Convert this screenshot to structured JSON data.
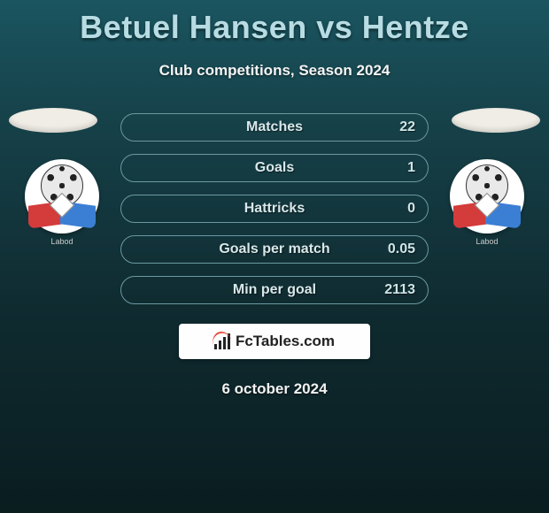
{
  "title": "Betuel Hansen vs Hentze",
  "subtitle": "Club competitions, Season 2024",
  "date": "6 october 2024",
  "footer_brand": "FcTables.com",
  "colors": {
    "title": "#b8dce3",
    "row_border": "#6a9aa0",
    "row_text": "#d8e8ea",
    "value_text": "#cde4e7",
    "badge_text": "Labod"
  },
  "stats": [
    {
      "label": "Matches",
      "value": "22"
    },
    {
      "label": "Goals",
      "value": "1"
    },
    {
      "label": "Hattricks",
      "value": "0"
    },
    {
      "label": "Goals per match",
      "value": "0.05"
    },
    {
      "label": "Min per goal",
      "value": "2113"
    }
  ]
}
